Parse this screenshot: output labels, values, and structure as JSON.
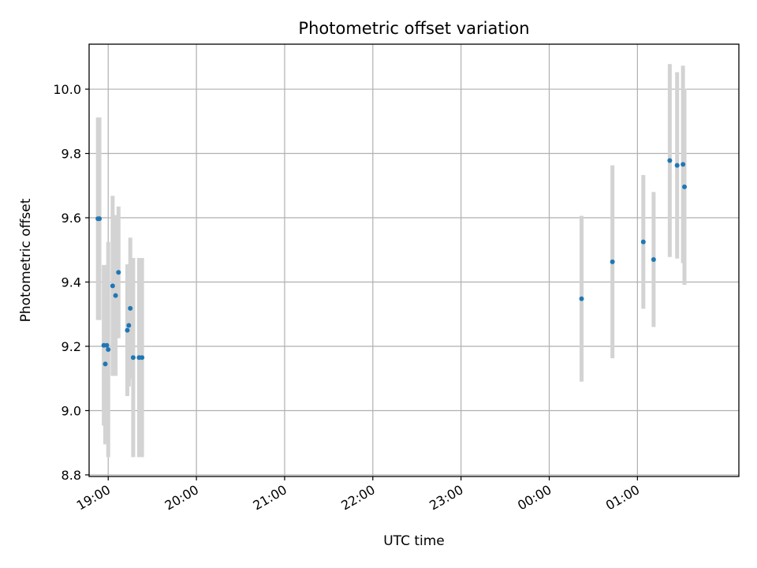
{
  "chart_data": {
    "type": "scatter",
    "title": "Photometric offset variation",
    "xlabel": "UTC time",
    "ylabel": "Photometric offset",
    "x_unit": "UTC time (HH:MM), spans midnight",
    "xlim": [
      "18:47",
      "02:09"
    ],
    "ylim": [
      8.795,
      10.14
    ],
    "x_ticks": [
      "19:00",
      "20:00",
      "21:00",
      "22:00",
      "23:00",
      "00:00",
      "01:00"
    ],
    "y_ticks": [
      8.8,
      9.0,
      9.2,
      9.4,
      9.6,
      9.8,
      10.0
    ],
    "y_tick_labels": [
      "8.8",
      "9.0",
      "9.2",
      "9.4",
      "9.6",
      "9.8",
      "10.0"
    ],
    "grid": true,
    "colors": {
      "points": "#1f77b4",
      "error_bars": "#d3d3d3",
      "grid": "#b0b0b0",
      "axes": "#000000"
    },
    "points": [
      {
        "x": "18:53",
        "y": 9.597,
        "yerr": 0.315
      },
      {
        "x": "18:54",
        "y": 9.597,
        "yerr": 0.315
      },
      {
        "x": "18:57",
        "y": 9.203,
        "yerr": 0.25
      },
      {
        "x": "18:58",
        "y": 9.145,
        "yerr": 0.25
      },
      {
        "x": "18:59",
        "y": 9.203,
        "yerr": 0.25
      },
      {
        "x": "19:00",
        "y": 9.19,
        "yerr": 0.335
      },
      {
        "x": "19:03",
        "y": 9.388,
        "yerr": 0.28
      },
      {
        "x": "19:05",
        "y": 9.358,
        "yerr": 0.25
      },
      {
        "x": "19:07",
        "y": 9.43,
        "yerr": 0.205
      },
      {
        "x": "19:13",
        "y": 9.25,
        "yerr": 0.205
      },
      {
        "x": "19:14",
        "y": 9.265,
        "yerr": 0.19
      },
      {
        "x": "19:15",
        "y": 9.318,
        "yerr": 0.22
      },
      {
        "x": "19:17",
        "y": 9.165,
        "yerr": 0.31
      },
      {
        "x": "19:21",
        "y": 9.165,
        "yerr": 0.31
      },
      {
        "x": "19:23",
        "y": 9.165,
        "yerr": 0.31
      },
      {
        "x": "00:22",
        "y": 9.348,
        "yerr": 0.258
      },
      {
        "x": "00:43",
        "y": 9.463,
        "yerr": 0.3
      },
      {
        "x": "01:04",
        "y": 9.525,
        "yerr": 0.208
      },
      {
        "x": "01:11",
        "y": 9.47,
        "yerr": 0.21
      },
      {
        "x": "01:22",
        "y": 9.778,
        "yerr": 0.3
      },
      {
        "x": "01:27",
        "y": 9.763,
        "yerr": 0.29
      },
      {
        "x": "01:31",
        "y": 9.766,
        "yerr": 0.307
      },
      {
        "x": "01:32",
        "y": 9.696,
        "yerr": 0.305
      }
    ]
  }
}
